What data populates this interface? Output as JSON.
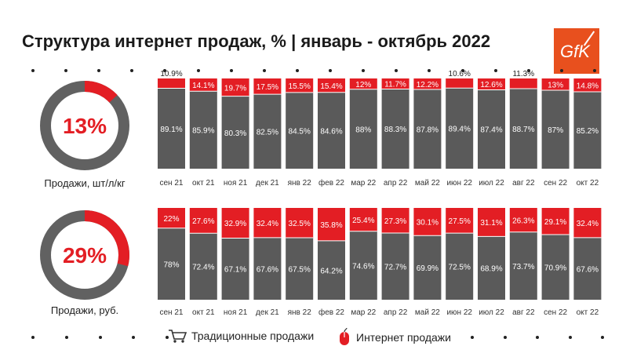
{
  "title": "Структура интернет продаж, % | январь - октябрь 2022",
  "logo_text": "GfK",
  "colors": {
    "traditional": "#5a5a5a",
    "internet": "#e31e24",
    "donut_base": "#616161"
  },
  "chart_data": [
    {
      "type": "bar",
      "stacked": true,
      "title": "Продажи, шт/л/кг",
      "donut_value": "13%",
      "donut_share": 13,
      "categories": [
        "сен 21",
        "окт 21",
        "ноя 21",
        "дек 21",
        "янв 22",
        "фев 22",
        "мар 22",
        "апр 22",
        "май 22",
        "июн 22",
        "июл 22",
        "авг 22",
        "сен 22",
        "окт 22"
      ],
      "series": [
        {
          "name": "Традиционные продажи",
          "values": [
            89.1,
            85.9,
            80.3,
            82.5,
            84.5,
            84.6,
            88,
            88.3,
            87.8,
            89.4,
            87.4,
            88.7,
            87,
            85.2
          ],
          "labels": [
            "89.1%",
            "85.9%",
            "80.3%",
            "82.5%",
            "84.5%",
            "84.6%",
            "88%",
            "88.3%",
            "87.8%",
            "89.4%",
            "87.4%",
            "88.7%",
            "87%",
            "85.2%"
          ]
        },
        {
          "name": "Интернет продажи",
          "values": [
            10.9,
            14.1,
            19.7,
            17.5,
            15.5,
            15.4,
            12,
            11.7,
            12.2,
            10.6,
            12.6,
            11.3,
            13,
            14.8
          ],
          "labels": [
            "10.9%",
            "14.1%",
            "19.7%",
            "17.5%",
            "15.5%",
            "15.4%",
            "12%",
            "11.7%",
            "12.2%",
            "10.6%",
            "12.6%",
            "11.3%",
            "13%",
            "14.8%"
          ]
        }
      ]
    },
    {
      "type": "bar",
      "stacked": true,
      "title": "Продажи, руб.",
      "donut_value": "29%",
      "donut_share": 29,
      "categories": [
        "сен 21",
        "окт 21",
        "ноя 21",
        "дек 21",
        "янв 22",
        "фев 22",
        "мар 22",
        "апр 22",
        "май 22",
        "июн 22",
        "июл 22",
        "авг 22",
        "сен 22",
        "окт 22"
      ],
      "series": [
        {
          "name": "Традиционные продажи",
          "values": [
            78,
            72.4,
            67.1,
            67.6,
            67.5,
            64.2,
            74.6,
            72.7,
            69.9,
            72.5,
            68.9,
            73.7,
            70.9,
            67.6
          ],
          "labels": [
            "78%",
            "72.4%",
            "67.1%",
            "67.6%",
            "67.5%",
            "64.2%",
            "74.6%",
            "72.7%",
            "69.9%",
            "72.5%",
            "68.9%",
            "73.7%",
            "70.9%",
            "67.6%"
          ]
        },
        {
          "name": "Интернет продажи",
          "values": [
            22,
            27.6,
            32.9,
            32.4,
            32.5,
            35.8,
            25.4,
            27.3,
            30.1,
            27.5,
            31.1,
            26.3,
            29.1,
            32.4
          ],
          "labels": [
            "22%",
            "27.6%",
            "32.9%",
            "32.4%",
            "32.5%",
            "35.8%",
            "25.4%",
            "27.3%",
            "30.1%",
            "27.5%",
            "31.1%",
            "26.3%",
            "29.1%",
            "32.4%"
          ]
        }
      ]
    }
  ],
  "legend": {
    "traditional": "Традиционные продажи",
    "internet": "Интернет продажи"
  }
}
